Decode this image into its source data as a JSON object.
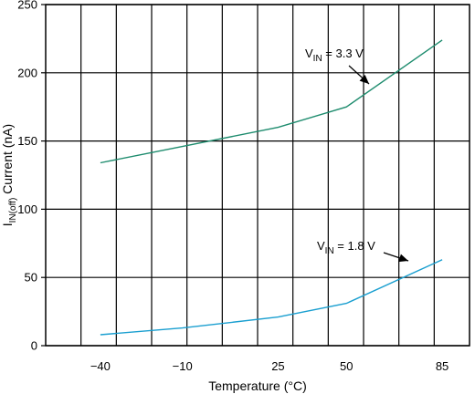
{
  "chart_data": {
    "type": "line",
    "xlabel": "Temperature (°C)",
    "ylabel": {
      "symbol": "I",
      "subscript": "IN(off)",
      "rest": " Current (nA)"
    },
    "x_ticks": [
      "−40",
      "−10",
      "25",
      "50",
      "85"
    ],
    "x_tick_values": [
      -40,
      -10,
      25,
      50,
      85
    ],
    "xlim": [
      -60,
      95
    ],
    "ylim": [
      0,
      250
    ],
    "y_ticks": [
      0,
      50,
      100,
      150,
      200,
      250
    ],
    "grid": true,
    "series": [
      {
        "name": "VIN = 3.3 V",
        "label": {
          "symbol": "V",
          "subscript": "IN",
          "rest": " = 3.3 V"
        },
        "color": "#1e8c6e",
        "x": [
          -40,
          -10,
          25,
          50,
          85
        ],
        "y": [
          134,
          146,
          160,
          175,
          224
        ]
      },
      {
        "name": "VIN = 1.8 V",
        "label": {
          "symbol": "V",
          "subscript": "IN",
          "rest": " = 1.8 V"
        },
        "color": "#1a9fd0",
        "x": [
          -40,
          -10,
          25,
          50,
          85
        ],
        "y": [
          8,
          13,
          21,
          31,
          63
        ]
      }
    ]
  }
}
